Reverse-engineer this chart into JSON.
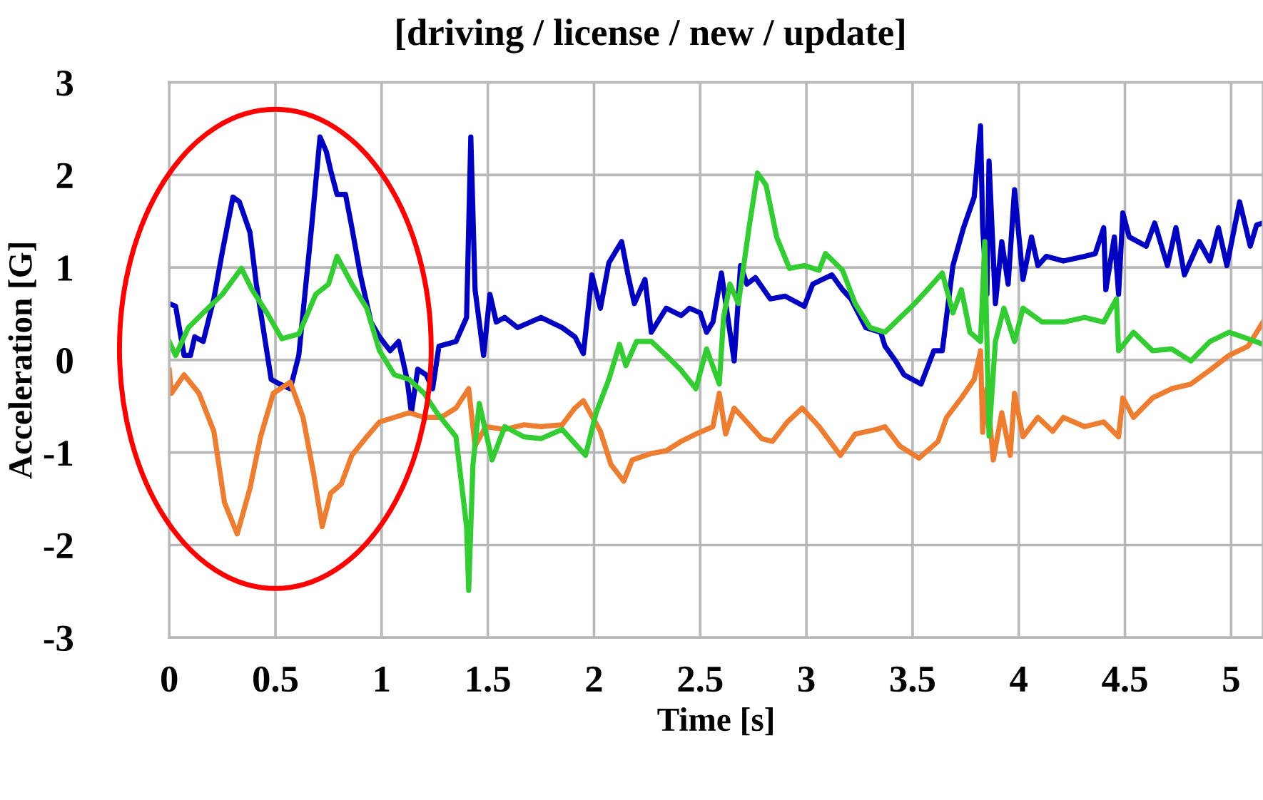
{
  "chart_data": {
    "type": "line",
    "title": "[driving / license / new / update]",
    "xlabel": "Time [s]",
    "ylabel": "Acceleration [G]",
    "xlim": [
      0,
      5.15
    ],
    "xticks": [
      0,
      0.5,
      1,
      1.5,
      2,
      2.5,
      3,
      3.5,
      4,
      4.5,
      5
    ],
    "ylim": [
      -3,
      3
    ],
    "yticks": [
      -3,
      -2,
      -1,
      0,
      1,
      2,
      3
    ],
    "grid": true,
    "marker": "none",
    "line_style": "solid",
    "series": [
      {
        "color": "#0000c0",
        "x": [
          0.0,
          0.03,
          0.07,
          0.1,
          0.12,
          0.16,
          0.21,
          0.25,
          0.3,
          0.33,
          0.38,
          0.41,
          0.48,
          0.52,
          0.57,
          0.61,
          0.67,
          0.71,
          0.74,
          0.76,
          0.79,
          0.83,
          0.86,
          0.9,
          0.95,
          0.99,
          1.04,
          1.08,
          1.12,
          1.14,
          1.17,
          1.21,
          1.24,
          1.27,
          1.35,
          1.4,
          1.42,
          1.44,
          1.48,
          1.51,
          1.54,
          1.58,
          1.64,
          1.75,
          1.85,
          1.91,
          1.95,
          1.99,
          2.03,
          2.07,
          2.13,
          2.16,
          2.19,
          2.24,
          2.27,
          2.34,
          2.41,
          2.45,
          2.5,
          2.53,
          2.56,
          2.6,
          2.63,
          2.66,
          2.69,
          2.72,
          2.76,
          2.83,
          2.9,
          2.99,
          3.03,
          3.12,
          3.17,
          3.21,
          3.28,
          3.35,
          3.37,
          3.42,
          3.46,
          3.54,
          3.6,
          3.64,
          3.69,
          3.74,
          3.79,
          3.82,
          3.83,
          3.85,
          3.86,
          3.89,
          3.92,
          3.95,
          3.98,
          4.02,
          4.06,
          4.09,
          4.13,
          4.21,
          4.31,
          4.36,
          4.4,
          4.41,
          4.45,
          4.47,
          4.49,
          4.52,
          4.6,
          4.64,
          4.7,
          4.74,
          4.78,
          4.85,
          4.9,
          4.94,
          4.98,
          5.04,
          5.09,
          5.12,
          5.15
        ],
        "values": [
          0.61,
          0.58,
          0.05,
          0.05,
          0.25,
          0.2,
          0.66,
          1.17,
          1.76,
          1.71,
          1.38,
          0.82,
          -0.21,
          -0.26,
          -0.31,
          0.05,
          1.43,
          2.41,
          2.25,
          2.05,
          1.79,
          1.79,
          1.43,
          0.92,
          0.41,
          0.25,
          0.1,
          0.2,
          -0.21,
          -0.57,
          -0.1,
          -0.16,
          -0.31,
          0.15,
          0.2,
          0.46,
          2.41,
          0.76,
          0.05,
          0.71,
          0.41,
          0.46,
          0.35,
          0.46,
          0.35,
          0.25,
          0.07,
          0.92,
          0.56,
          1.05,
          1.28,
          0.92,
          0.61,
          0.87,
          0.3,
          0.56,
          0.48,
          0.56,
          0.51,
          0.3,
          0.41,
          0.94,
          0.46,
          -0.01,
          1.02,
          0.82,
          0.89,
          0.66,
          0.69,
          0.58,
          0.82,
          0.92,
          0.76,
          0.66,
          0.35,
          0.3,
          0.15,
          -0.01,
          -0.16,
          -0.26,
          0.1,
          0.1,
          1.02,
          1.43,
          1.76,
          2.53,
          1.43,
          0.71,
          2.15,
          0.61,
          1.28,
          0.82,
          1.84,
          0.87,
          1.33,
          1.02,
          1.12,
          1.07,
          1.12,
          1.15,
          1.43,
          0.76,
          1.33,
          0.71,
          1.59,
          1.33,
          1.23,
          1.48,
          1.02,
          1.43,
          0.92,
          1.28,
          1.07,
          1.43,
          1.02,
          1.71,
          1.23,
          1.46,
          1.48
        ]
      },
      {
        "color": "#ed7d31",
        "x": [
          0.0,
          0.01,
          0.07,
          0.14,
          0.21,
          0.26,
          0.32,
          0.38,
          0.43,
          0.49,
          0.57,
          0.63,
          0.68,
          0.72,
          0.76,
          0.81,
          0.86,
          0.93,
          0.99,
          1.06,
          1.13,
          1.2,
          1.28,
          1.35,
          1.41,
          1.44,
          1.49,
          1.58,
          1.67,
          1.75,
          1.85,
          1.91,
          1.95,
          2.03,
          2.08,
          2.14,
          2.18,
          2.27,
          2.34,
          2.41,
          2.48,
          2.56,
          2.59,
          2.62,
          2.66,
          2.7,
          2.79,
          2.84,
          2.91,
          2.98,
          3.06,
          3.16,
          3.23,
          3.33,
          3.37,
          3.44,
          3.53,
          3.62,
          3.66,
          3.73,
          3.79,
          3.82,
          3.83,
          3.85,
          3.88,
          3.92,
          3.96,
          3.98,
          4.02,
          4.09,
          4.16,
          4.21,
          4.31,
          4.4,
          4.47,
          4.49,
          4.54,
          4.63,
          4.72,
          4.81,
          4.9,
          4.99,
          5.08,
          5.15
        ],
        "values": [
          -0.11,
          -0.36,
          -0.16,
          -0.36,
          -0.77,
          -1.54,
          -1.88,
          -1.39,
          -0.83,
          -0.36,
          -0.24,
          -0.62,
          -1.23,
          -1.8,
          -1.44,
          -1.34,
          -1.03,
          -0.83,
          -0.67,
          -0.62,
          -0.57,
          -0.62,
          -0.62,
          -0.52,
          -0.31,
          -0.93,
          -0.72,
          -0.75,
          -0.7,
          -0.72,
          -0.7,
          -0.52,
          -0.44,
          -0.77,
          -1.13,
          -1.31,
          -1.08,
          -1.01,
          -0.98,
          -0.88,
          -0.8,
          -0.72,
          -0.36,
          -0.8,
          -0.52,
          -0.62,
          -0.85,
          -0.88,
          -0.67,
          -0.52,
          -0.72,
          -1.03,
          -0.8,
          -0.75,
          -0.72,
          -0.93,
          -1.06,
          -0.88,
          -0.62,
          -0.41,
          -0.21,
          0.1,
          -0.78,
          -0.31,
          -1.08,
          -0.57,
          -1.03,
          -0.36,
          -0.83,
          -0.62,
          -0.77,
          -0.62,
          -0.72,
          -0.67,
          -0.83,
          -0.41,
          -0.62,
          -0.41,
          -0.31,
          -0.26,
          -0.11,
          0.05,
          0.15,
          0.41
        ]
      },
      {
        "color": "#33cc33",
        "x": [
          0.0,
          0.03,
          0.09,
          0.16,
          0.25,
          0.34,
          0.39,
          0.46,
          0.53,
          0.61,
          0.69,
          0.75,
          0.79,
          0.86,
          0.93,
          0.99,
          1.06,
          1.13,
          1.2,
          1.26,
          1.35,
          1.4,
          1.41,
          1.43,
          1.46,
          1.52,
          1.58,
          1.67,
          1.75,
          1.85,
          1.96,
          2.01,
          2.07,
          2.12,
          2.15,
          2.2,
          2.27,
          2.34,
          2.41,
          2.48,
          2.53,
          2.59,
          2.61,
          2.64,
          2.68,
          2.73,
          2.77,
          2.81,
          2.86,
          2.92,
          2.99,
          3.06,
          3.09,
          3.17,
          3.23,
          3.3,
          3.37,
          3.42,
          3.51,
          3.57,
          3.64,
          3.69,
          3.73,
          3.77,
          3.82,
          3.84,
          3.86,
          3.89,
          3.93,
          3.98,
          4.02,
          4.11,
          4.21,
          4.31,
          4.4,
          4.46,
          4.47,
          4.54,
          4.63,
          4.72,
          4.81,
          4.9,
          4.99,
          5.08,
          5.15
        ],
        "values": [
          0.2,
          0.05,
          0.35,
          0.51,
          0.71,
          0.99,
          0.76,
          0.51,
          0.23,
          0.28,
          0.71,
          0.82,
          1.12,
          0.82,
          0.56,
          0.1,
          -0.16,
          -0.21,
          -0.36,
          -0.57,
          -0.83,
          -1.8,
          -2.49,
          -1.13,
          -0.47,
          -1.08,
          -0.72,
          -0.83,
          -0.85,
          -0.75,
          -1.03,
          -0.57,
          -0.21,
          0.17,
          -0.06,
          0.2,
          0.2,
          0.05,
          -0.11,
          -0.31,
          0.12,
          -0.26,
          0.46,
          0.82,
          0.61,
          1.43,
          2.02,
          1.89,
          1.33,
          0.99,
          1.02,
          0.97,
          1.15,
          0.97,
          0.61,
          0.35,
          0.3,
          0.41,
          0.61,
          0.76,
          0.94,
          0.51,
          0.76,
          0.3,
          0.2,
          1.28,
          -0.82,
          0.2,
          0.56,
          0.2,
          0.56,
          0.41,
          0.41,
          0.46,
          0.41,
          0.66,
          0.1,
          0.3,
          0.1,
          0.12,
          -0.01,
          0.2,
          0.3,
          0.23,
          0.17
        ]
      }
    ]
  }
}
